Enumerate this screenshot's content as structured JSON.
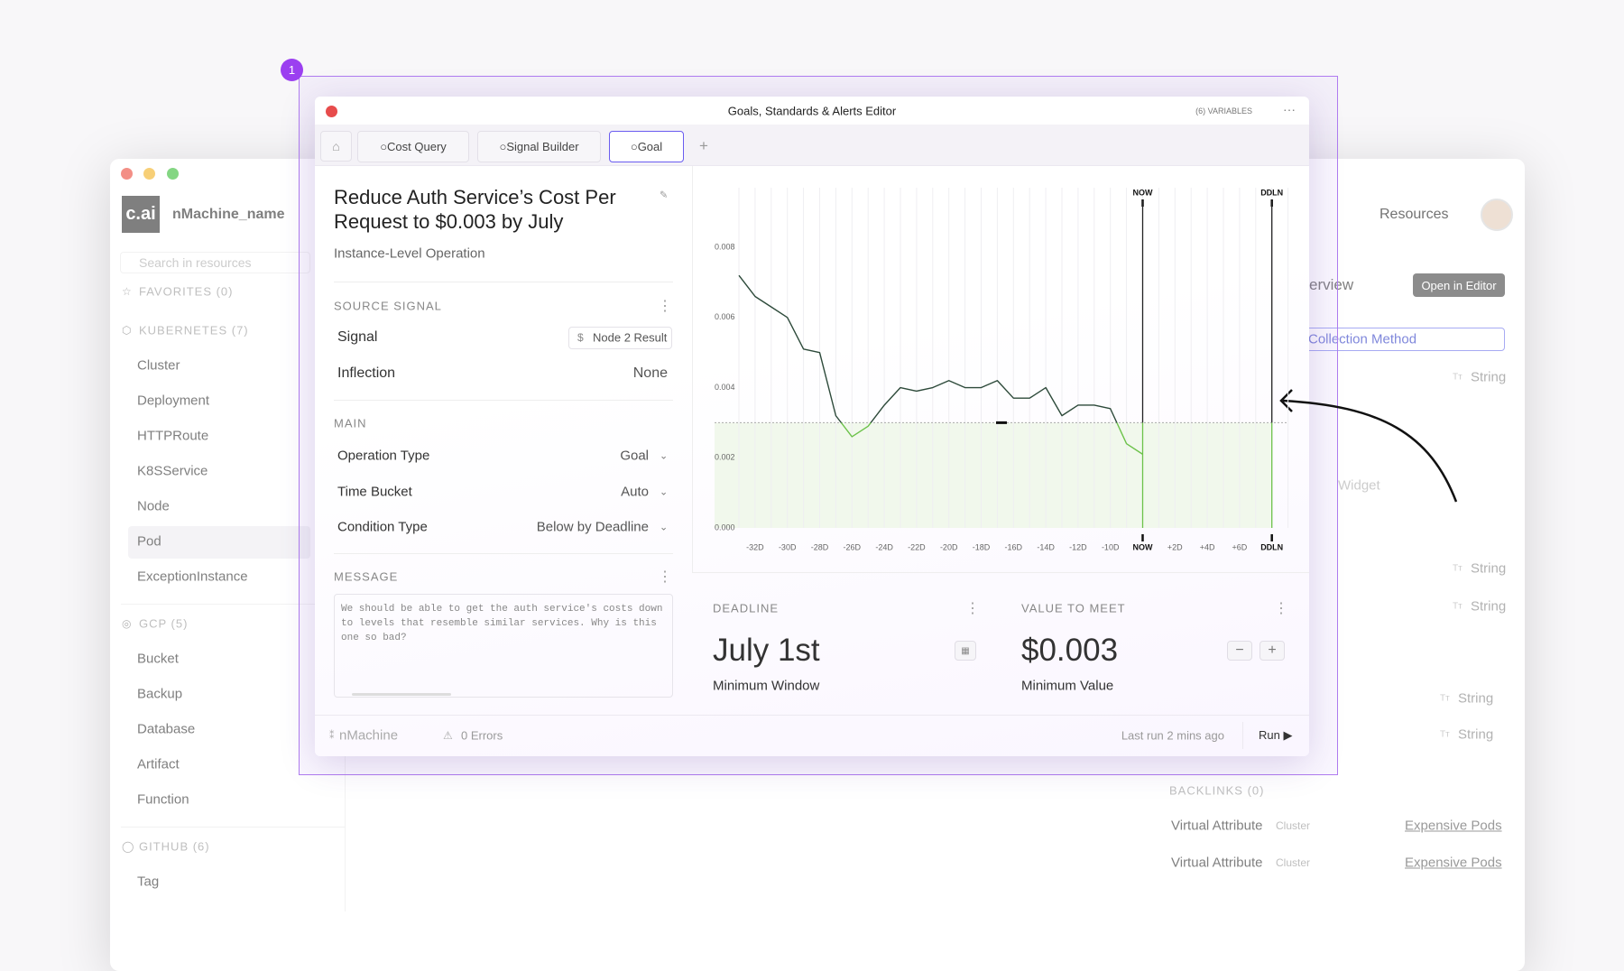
{
  "sidebar": {
    "logo": "c.ai",
    "workspace": "nMachine_name",
    "search": "Search in resources",
    "groups": [
      {
        "title": "FAVORITES (0)"
      },
      {
        "title": "KUBERNETES (7)",
        "items": [
          "Cluster",
          "Deployment",
          "HTTPRoute",
          "K8SService",
          "Node",
          "Pod",
          "ExceptionInstance"
        ]
      },
      {
        "title": "GCP (5)",
        "items": [
          "Bucket",
          "Backup",
          "Database",
          "Artifact",
          "Function"
        ]
      },
      {
        "title": "GITHUB (6)",
        "items": [
          "Tag"
        ]
      }
    ]
  },
  "background": {
    "resources": "Resources",
    "overview": "erview",
    "open_editor": "Open in Editor",
    "field": "Collection Method",
    "types": [
      "String",
      "String",
      "String",
      "String",
      "String"
    ],
    "widget": "Widget",
    "backlinks": {
      "title": "BACKLINKS (0)",
      "rows": [
        [
          "Virtual Attribute",
          "Cluster",
          "Expensive Pods"
        ],
        [
          "Virtual Attribute",
          "Cluster",
          "Expensive Pods"
        ]
      ]
    }
  },
  "badge": "1",
  "editor": {
    "title": "Goals, Standards & Alerts Editor",
    "variables": "(6) VARIABLES",
    "tabs": [
      "Cost Query",
      "Signal Builder",
      "Goal"
    ],
    "goal_title": "Reduce Auth Service’s Cost Per Request to $0.003 by July",
    "subtitle": "Instance-Level Operation",
    "source_signal": {
      "heading": "SOURCE SIGNAL",
      "rows": [
        [
          "Signal",
          "Node 2 Result"
        ],
        [
          "Inflection",
          "None"
        ]
      ]
    },
    "main": {
      "heading": "MAIN",
      "rows": [
        [
          "Operation Type",
          "Goal"
        ],
        [
          "Time Bucket",
          "Auto"
        ],
        [
          "Condition Type",
          "Below by Deadline"
        ]
      ]
    },
    "message": {
      "heading": "MESSAGE",
      "text": "We should be able to get the auth service's costs down to levels that resemble similar services. Why is this one so bad?"
    },
    "deadline": {
      "heading": "DEADLINE",
      "value": "July 1st",
      "caption": "Minimum Window"
    },
    "value_to_meet": {
      "heading": "VALUE TO MEET",
      "value": "$0.003",
      "caption": "Minimum Value"
    },
    "footer": {
      "brand": "nMachine",
      "errors": "0 Errors",
      "last_run": "Last run 2 mins ago",
      "run": "Run"
    }
  },
  "chart_data": {
    "type": "line",
    "categories": [
      null,
      "-32D",
      null,
      "-30D",
      null,
      "-28D",
      null,
      "-26D",
      null,
      "-24D",
      null,
      "-22D",
      null,
      "-20D",
      null,
      "-18D",
      null,
      "-16D",
      null,
      "-14D",
      null,
      "-12D",
      null,
      "-10D",
      null,
      "NOW",
      null,
      "+2D",
      null,
      "+4D",
      null,
      "+6D",
      null,
      "DDLN",
      null
    ],
    "values": [
      0.0072,
      0.0066,
      0.0063,
      0.006,
      0.0051,
      0.005,
      0.0032,
      0.0026,
      0.0029,
      0.0035,
      0.004,
      0.0039,
      0.004,
      0.0042,
      0.004,
      0.004,
      0.0042,
      0.0037,
      0.0037,
      0.004,
      0.0032,
      0.0035,
      0.0035,
      0.0034,
      0.0024,
      0.0021,
      null,
      null,
      null,
      null,
      null,
      null,
      null,
      null,
      null
    ],
    "color": "#2d4a3a",
    "below_color": "#6cc24a",
    "threshold": 0.003,
    "event_lines": [
      25,
      33
    ],
    "ylim": [
      0,
      0.0097
    ],
    "yticks": [
      {
        "value": 0,
        "label": "0.000"
      },
      {
        "value": 0.002,
        "label": "0.002"
      },
      {
        "value": 0.004,
        "label": "0.004"
      },
      {
        "value": 0.006,
        "label": "0.006"
      },
      {
        "value": 0.008,
        "label": "0.008"
      }
    ],
    "grid": "x"
  }
}
